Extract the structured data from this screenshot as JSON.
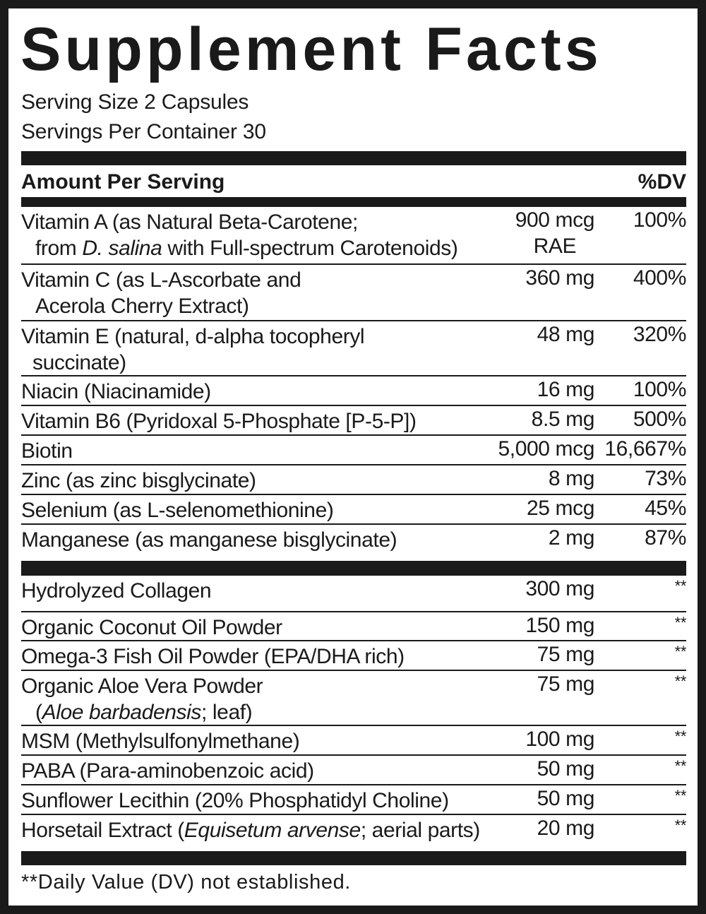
{
  "title": "Supplement Facts",
  "serving_size": "Serving Size 2 Capsules",
  "servings_per_container": "Servings Per Container 30",
  "header": {
    "amount_label": "Amount Per Serving",
    "dv_label": "%DV"
  },
  "vitamins": [
    {
      "name": [
        [
          {
            "t": "Vitamin A (as Natural Beta-Carotene;"
          }
        ],
        [
          {
            "t": "from "
          },
          {
            "t": "D. salina",
            "i": true
          },
          {
            "t": " with Full-spectrum Carotenoids)"
          }
        ]
      ],
      "amount": "900 mcg",
      "amount_unit": "RAE",
      "dv": "100%"
    },
    {
      "name": [
        [
          {
            "t": "Vitamin C (as  L-Ascorbate and"
          }
        ],
        [
          {
            "t": "Acerola Cherry Extract)"
          }
        ]
      ],
      "amount": "360 mg",
      "dv": "400%"
    },
    {
      "name": [
        [
          {
            "t": "Vitamin E (natural, d-alpha tocopheryl"
          }
        ],
        [
          {
            "t": "succinate)"
          }
        ]
      ],
      "amount": "48 mg",
      "dv": "320%"
    },
    {
      "name": [
        [
          {
            "t": "Niacin (Niacinamide)"
          }
        ]
      ],
      "amount": "16 mg",
      "dv": "100%"
    },
    {
      "name": [
        [
          {
            "t": "Vitamin B6 (Pyridoxal 5-Phosphate [P-5-P])"
          }
        ]
      ],
      "amount": "8.5 mg",
      "dv": "500%"
    },
    {
      "name": [
        [
          {
            "t": "Biotin"
          }
        ]
      ],
      "amount": "5,000 mcg",
      "dv": "16,667%"
    },
    {
      "name": [
        [
          {
            "t": "Zinc (as zinc bisglycinate)"
          }
        ]
      ],
      "amount": "8 mg",
      "dv": "73%"
    },
    {
      "name": [
        [
          {
            "t": "Selenium (as L-selenomethionine)"
          }
        ]
      ],
      "amount": "25 mcg",
      "dv": "45%"
    },
    {
      "name": [
        [
          {
            "t": "Manganese (as manganese bisglycinate)"
          }
        ]
      ],
      "amount": "2 mg",
      "dv": "87%"
    }
  ],
  "other": [
    {
      "name": [
        [
          {
            "t": "Hydrolyzed Collagen"
          }
        ]
      ],
      "amount": "300 mg",
      "dv": "**"
    },
    {
      "name": [
        [
          {
            "t": "Organic Coconut Oil Powder"
          }
        ]
      ],
      "amount": "150 mg",
      "dv": "**"
    },
    {
      "name": [
        [
          {
            "t": "Omega-3 Fish Oil Powder (EPA/DHA rich)"
          }
        ]
      ],
      "amount": "75 mg",
      "dv": "**"
    },
    {
      "name": [
        [
          {
            "t": "Organic Aloe Vera Powder"
          }
        ],
        [
          {
            "t": "("
          },
          {
            "t": "Aloe barbadensis",
            "i": true
          },
          {
            "t": "; leaf)"
          }
        ]
      ],
      "amount": "75 mg",
      "dv": "**"
    },
    {
      "name": [
        [
          {
            "t": "MSM (Methylsulfonylmethane)"
          }
        ]
      ],
      "amount": "100 mg",
      "dv": "**"
    },
    {
      "name": [
        [
          {
            "t": "PABA (Para-aminobenzoic acid)"
          }
        ]
      ],
      "amount": "50 mg",
      "dv": "**"
    },
    {
      "name": [
        [
          {
            "t": "Sunflower Lecithin (20% Phosphatidyl Choline)"
          }
        ]
      ],
      "amount": "50 mg",
      "dv": "**"
    },
    {
      "name": [
        [
          {
            "t": "Horsetail Extract ("
          },
          {
            "t": "Equisetum arvense",
            "i": true
          },
          {
            "t": "; aerial parts)"
          }
        ]
      ],
      "amount": "20 mg",
      "dv": "**"
    }
  ],
  "footnote": "**Daily Value (DV) not established."
}
